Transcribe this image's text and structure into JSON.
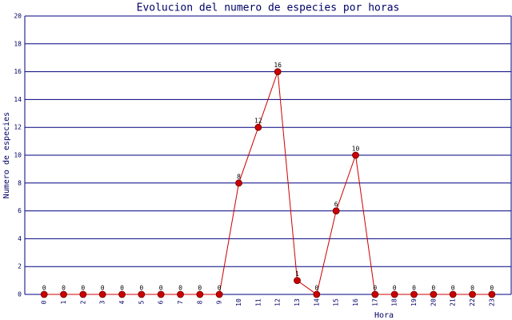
{
  "chart_data": {
    "type": "line",
    "title": "Evolucion del numero de especies por horas",
    "x_label": "Hora",
    "y_label": "Numero de especies",
    "categories": [
      "0",
      "1",
      "2",
      "3",
      "4",
      "5",
      "6",
      "7",
      "8",
      "9",
      "10",
      "11",
      "12",
      "13",
      "14",
      "15",
      "16",
      "17",
      "18",
      "19",
      "20",
      "21",
      "22",
      "23"
    ],
    "series": [
      {
        "name": "Numero de especies",
        "color": "#cc0000",
        "values": [
          0,
          0,
          0,
          0,
          0,
          0,
          0,
          0,
          0,
          0,
          8,
          12,
          16,
          1,
          0,
          6,
          10,
          0,
          0,
          0,
          0,
          0,
          0,
          0
        ]
      }
    ],
    "ylim": [
      0,
      20
    ],
    "yticks": [
      0,
      2,
      4,
      6,
      8,
      10,
      12,
      14,
      16,
      18,
      20
    ],
    "grid": true
  }
}
